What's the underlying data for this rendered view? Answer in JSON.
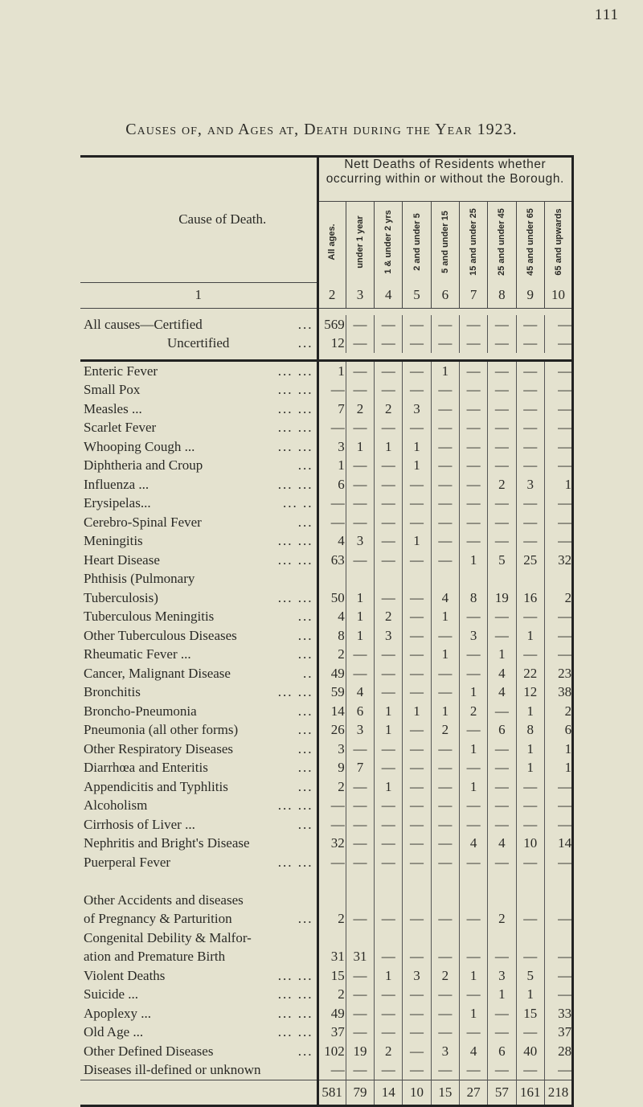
{
  "page_number": "111",
  "title": "Causes of, and Ages at, Death during the Year 1923.",
  "table": {
    "cause_header": "Cause of Death.",
    "group_header": "Nett Deaths of Residents whether occurring within or without the Borough.",
    "age_columns": [
      "All ages.",
      "under 1 year",
      "1 & under 2 yrs",
      "2 and under 5",
      "5 and under 15",
      "15 and under 25",
      "25 and under 45",
      "45 and under 65",
      "65 and upwards"
    ],
    "column_numbers": [
      "1",
      "2",
      "3",
      "4",
      "5",
      "6",
      "7",
      "8",
      "9",
      "10"
    ],
    "all_causes": [
      {
        "label": "All causes—Certified",
        "dots": "...",
        "values": [
          "569",
          "—",
          "—",
          "—",
          "—",
          "—",
          "—",
          "—",
          "—"
        ]
      },
      {
        "label": "Uncertified",
        "dots": "...",
        "values": [
          "12",
          "—",
          "—",
          "—",
          "—",
          "—",
          "—",
          "—",
          "—"
        ]
      }
    ],
    "rows": [
      {
        "label": "Enteric Fever",
        "dots": "...   ...",
        "values": [
          "1",
          "—",
          "—",
          "—",
          "1",
          "—",
          "—",
          "—",
          "—"
        ]
      },
      {
        "label": "Small Pox",
        "dots": "...   ...",
        "values": [
          "—",
          "—",
          "—",
          "—",
          "—",
          "—",
          "—",
          "—",
          "—"
        ]
      },
      {
        "label": "Measles   ...",
        "dots": "...   ...",
        "values": [
          "7",
          "2",
          "2",
          "3",
          "—",
          "—",
          "—",
          "—",
          "—"
        ]
      },
      {
        "label": "Scarlet Fever",
        "dots": "...   ...",
        "values": [
          "—",
          "—",
          "—",
          "—",
          "—",
          "—",
          "—",
          "—",
          "—"
        ]
      },
      {
        "label": "Whooping Cough ...",
        "dots": "...   ...",
        "values": [
          "3",
          "1",
          "1",
          "1",
          "—",
          "—",
          "—",
          "—",
          "—"
        ]
      },
      {
        "label": "Diphtheria and Croup",
        "dots": "...",
        "values": [
          "1",
          "—",
          "—",
          "1",
          "—",
          "—",
          "—",
          "—",
          "—"
        ]
      },
      {
        "label": "Influenza ...",
        "dots": "...   ...",
        "values": [
          "6",
          "—",
          "—",
          "—",
          "—",
          "—",
          "2",
          "3",
          "1"
        ]
      },
      {
        "label": "Erysipelas...",
        "dots": "...   ..",
        "values": [
          "—",
          "—",
          "—",
          "—",
          "—",
          "—",
          "—",
          "—",
          "—"
        ]
      },
      {
        "label": "Cerebro-Spinal Fever",
        "dots": "...",
        "values": [
          "—",
          "—",
          "—",
          "—",
          "—",
          "—",
          "—",
          "—",
          "—"
        ]
      },
      {
        "label": "Meningitis",
        "dots": "...   ...",
        "values": [
          "4",
          "3",
          "—",
          "1",
          "—",
          "—",
          "—",
          "—",
          "—"
        ]
      },
      {
        "label": "Heart Disease",
        "dots": "...   ...",
        "values": [
          "63",
          "—",
          "—",
          "—",
          "—",
          "1",
          "5",
          "25",
          "32"
        ]
      },
      {
        "label": "Phthisis (Pulmonary\n   Tuberculosis)",
        "dots": "...   ...",
        "lines": 2,
        "values": [
          "50",
          "1",
          "—",
          "—",
          "4",
          "8",
          "19",
          "16",
          "2"
        ]
      },
      {
        "label": "Tuberculous Meningitis",
        "dots": "...",
        "values": [
          "4",
          "1",
          "2",
          "—",
          "1",
          "—",
          "—",
          "—",
          "—"
        ]
      },
      {
        "label": "Other Tuberculous Diseases",
        "dots": "...",
        "values": [
          "8",
          "1",
          "3",
          "—",
          "—",
          "3",
          "—",
          "1",
          "—"
        ]
      },
      {
        "label": "Rheumatic Fever  ...",
        "dots": "...",
        "values": [
          "2",
          "—",
          "—",
          "—",
          "1",
          "—",
          "1",
          "—",
          "—"
        ]
      },
      {
        "label": "Cancer, Malignant Disease",
        "dots": "..",
        "values": [
          "49",
          "—",
          "—",
          "—",
          "—",
          "—",
          "4",
          "22",
          "23"
        ]
      },
      {
        "label": "Bronchitis",
        "dots": "...   ...",
        "values": [
          "59",
          "4",
          "—",
          "—",
          "—",
          "1",
          "4",
          "12",
          "38"
        ]
      },
      {
        "label": "Broncho-Pneumonia",
        "dots": "...",
        "values": [
          "14",
          "6",
          "1",
          "1",
          "1",
          "2",
          "—",
          "1",
          "2"
        ]
      },
      {
        "label": "Pneumonia (all other forms)",
        "dots": "...",
        "values": [
          "26",
          "3",
          "1",
          "—",
          "2",
          "—",
          "6",
          "8",
          "6"
        ]
      },
      {
        "label": "Other Respiratory Diseases",
        "dots": "...",
        "values": [
          "3",
          "—",
          "—",
          "—",
          "—",
          "1",
          "—",
          "1",
          "1"
        ]
      },
      {
        "label": "Diarrhœa and Enteritis",
        "dots": "...",
        "values": [
          "9",
          "7",
          "—",
          "—",
          "—",
          "—",
          "—",
          "1",
          "1"
        ]
      },
      {
        "label": "Appendicitis and Typhlitis",
        "dots": "...",
        "values": [
          "2",
          "—",
          "1",
          "—",
          "—",
          "1",
          "—",
          "—",
          "—"
        ]
      },
      {
        "label": "Alcoholism",
        "dots": "...   ...",
        "values": [
          "—",
          "—",
          "—",
          "—",
          "—",
          "—",
          "—",
          "—",
          "—"
        ]
      },
      {
        "label": "Cirrhosis of Liver ...",
        "dots": "...",
        "values": [
          "—",
          "—",
          "—",
          "—",
          "—",
          "—",
          "—",
          "—",
          "—"
        ]
      },
      {
        "label": "Nephritis and Bright's Disease",
        "dots": "",
        "values": [
          "32",
          "—",
          "—",
          "—",
          "—",
          "4",
          "4",
          "10",
          "14"
        ]
      },
      {
        "label": "Puerperal Fever",
        "dots": "...   ...",
        "values": [
          "—",
          "—",
          "—",
          "—",
          "—",
          "—",
          "—",
          "—",
          "—"
        ]
      },
      {
        "label": "Other Accidents and diseases\n   of Pregnancy & Parturition",
        "dots": "...",
        "lines": 3,
        "values": [
          "2",
          "—",
          "—",
          "—",
          "—",
          "—",
          "2",
          "—",
          "—"
        ]
      },
      {
        "label": "Congenital Debility & Malfor-\n   ation and Premature Birth",
        "dots": "",
        "lines": 2,
        "values": [
          "31",
          "31",
          "—",
          "—",
          "—",
          "—",
          "—",
          "—",
          "—"
        ]
      },
      {
        "label": "Violent Deaths",
        "dots": "...   ...",
        "values": [
          "15",
          "—",
          "1",
          "3",
          "2",
          "1",
          "3",
          "5",
          "—"
        ]
      },
      {
        "label": "Suicide   ...",
        "dots": "...   ...",
        "values": [
          "2",
          "—",
          "—",
          "—",
          "—",
          "—",
          "1",
          "1",
          "—"
        ]
      },
      {
        "label": "Apoplexy ...",
        "dots": "...   ...",
        "values": [
          "49",
          "—",
          "—",
          "—",
          "—",
          "1",
          "—",
          "15",
          "33"
        ]
      },
      {
        "label": "Old Age  ...",
        "dots": "...   ...",
        "values": [
          "37",
          "—",
          "—",
          "—",
          "—",
          "—",
          "—",
          "—",
          "37"
        ]
      },
      {
        "label": "Other Defined Diseases",
        "dots": "...",
        "values": [
          "102",
          "19",
          "2",
          "—",
          "3",
          "4",
          "6",
          "40",
          "28"
        ]
      },
      {
        "label": "Diseases ill-defined or unknown",
        "dots": "",
        "values": [
          "—",
          "—",
          "—",
          "—",
          "—",
          "—",
          "—",
          "—",
          "—"
        ]
      }
    ],
    "totals": [
      "581",
      "79",
      "14",
      "10",
      "15",
      "27",
      "57",
      "161",
      "218"
    ]
  }
}
